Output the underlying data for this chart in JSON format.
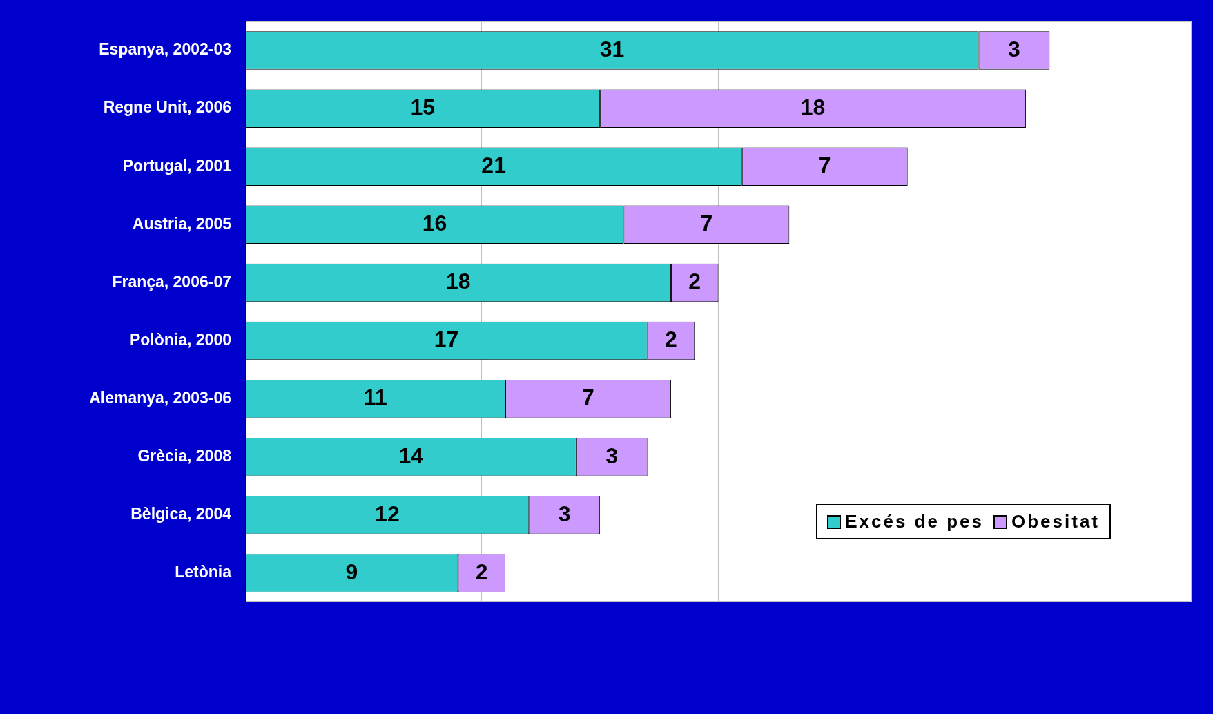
{
  "chart_data": {
    "type": "bar",
    "orientation": "horizontal",
    "stacked": true,
    "categories": [
      "Espanya, 2002-03",
      "Regne Unit, 2006",
      "Portugal, 2001",
      "Austria, 2005",
      "França, 2006-07",
      "Polònia, 2000",
      "Alemanya, 2003-06",
      "Grècia, 2008",
      "Bèlgica, 2004",
      "Letònia"
    ],
    "series": [
      {
        "name": "Excés de pes",
        "color": "#33cccc",
        "values": [
          31,
          15,
          21,
          16,
          18,
          17,
          11,
          14,
          12,
          9
        ]
      },
      {
        "name": "Obesitat",
        "color": "#cc99ff",
        "values": [
          3,
          18,
          7,
          7,
          2,
          2,
          7,
          3,
          3,
          2
        ]
      }
    ],
    "tick_labels": "y",
    "grid": "x",
    "legend": "bottom right",
    "data_labels": true
  }
}
